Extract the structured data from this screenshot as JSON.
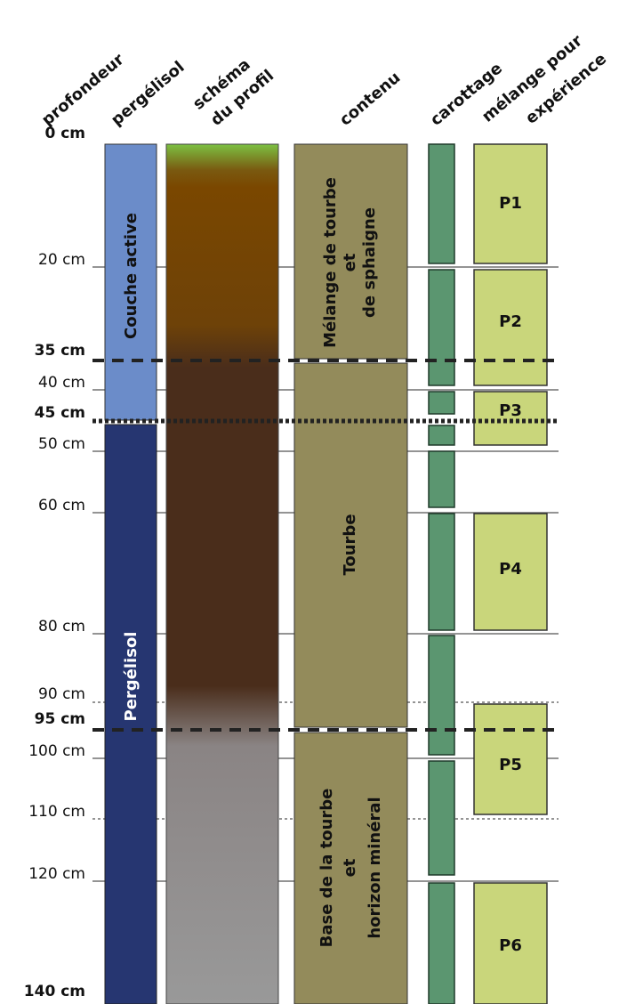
{
  "headers": {
    "depth": "profondeur",
    "permafrost": "pergélisol",
    "profile": [
      "schéma",
      "du profil"
    ],
    "content": "contenu",
    "coring": "carottage",
    "mix": [
      "mélange pour",
      "expérience"
    ]
  },
  "depths": [
    "0 cm",
    "20 cm",
    "35 cm",
    "40 cm",
    "45 cm",
    "50 cm",
    "60 cm",
    "80 cm",
    "90 cm",
    "95 cm",
    "100 cm",
    "110 cm",
    "120 cm",
    "140 cm"
  ],
  "permafrost": [
    "Couche active",
    "Pergélisol"
  ],
  "content": [
    [
      "Mélange de tourbe",
      "et",
      "de sphaigne"
    ],
    [
      "Tourbe"
    ],
    [
      "Base de la tourbe",
      "et",
      "horizon minéral"
    ]
  ],
  "samples": [
    "P1",
    "P2",
    "P3",
    "P4",
    "P5",
    "P6"
  ]
}
